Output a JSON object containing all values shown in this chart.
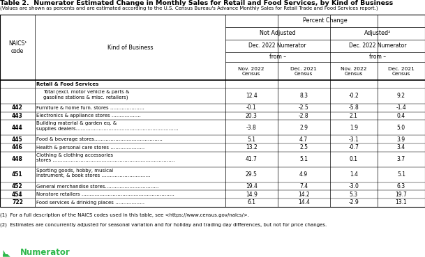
{
  "title": "Table 2.  Numerator Estimated Change in Monthly Sales for Retail and Food Services, by Kind of Business",
  "subtitle": "(Values are shown as percents and are estimated according to the U.S. Census Bureau's Advance Monthly Sales for Retail Trade and Food Services report.)",
  "header_percent_change": "Percent Change",
  "header_not_adjusted": "Not Adjusted",
  "header_adjusted": "Adjusted²",
  "header_dec2022_not_adj": "Dec. 2022 Numerator",
  "header_dec2022_adj": "Dec. 2022 Numerator",
  "header_from": "from –",
  "col_naics": "NAICS¹\ncode",
  "col_kind": "Kind of Business",
  "col_nov2022": "Nov. 2022\nCensus",
  "col_dec2021": "Dec. 2021\nCensus",
  "col_nov2022_adj": "Nov. 2022\nCensus",
  "col_dec2021_adj": "Dec. 2021\nCensus",
  "rows": [
    {
      "naics": "",
      "kind": "Retail & Food Services",
      "nov": "",
      "dec": "",
      "nov_adj": "",
      "dec_adj": "",
      "bold_kind": true,
      "indent": 0,
      "multiline": false
    },
    {
      "naics": "",
      "kind": "Total (excl. motor vehicle & parts &\ngasoline stations & misc. retailers)",
      "nov": "12.4",
      "dec": "8.3",
      "nov_adj": "-0.2",
      "dec_adj": "9.2",
      "bold_kind": false,
      "indent": 1,
      "multiline": true
    },
    {
      "naics": "442",
      "kind": "Furniture & home furn. stores …………………",
      "nov": "-0.1",
      "dec": "-2.5",
      "nov_adj": "-5.8",
      "dec_adj": "-1.4",
      "bold_kind": false,
      "indent": 0,
      "multiline": false
    },
    {
      "naics": "443",
      "kind": "Electronics & appliance stores ………………",
      "nov": "20.3",
      "dec": "-2.8",
      "nov_adj": "2.1",
      "dec_adj": "0.4",
      "bold_kind": false,
      "indent": 0,
      "multiline": false
    },
    {
      "naics": "444",
      "kind": "Building material & garden eq. &\nsupplies dealers………………………………………………………",
      "nov": "-3.8",
      "dec": "2.9",
      "nov_adj": "1.9",
      "dec_adj": "5.0",
      "bold_kind": false,
      "indent": 0,
      "multiline": true
    },
    {
      "naics": "445",
      "kind": "Food & beverage stores……………………………………",
      "nov": "5.1",
      "dec": "4.7",
      "nov_adj": "-3.1",
      "dec_adj": "3.9",
      "bold_kind": false,
      "indent": 0,
      "multiline": false
    },
    {
      "naics": "446",
      "kind": "Health & personal care stores …………………",
      "nov": "13.2",
      "dec": "2.5",
      "nov_adj": "-0.7",
      "dec_adj": "3.4",
      "bold_kind": false,
      "indent": 0,
      "multiline": false
    },
    {
      "naics": "448",
      "kind": "Clothing & clothing accessories\nstores …………………………………………………………………",
      "nov": "41.7",
      "dec": "5.1",
      "nov_adj": "0.1",
      "dec_adj": "3.7",
      "bold_kind": false,
      "indent": 0,
      "multiline": true
    },
    {
      "naics": "451",
      "kind": "Sporting goods, hobby, musical\ninstrument, & book stores …………………………",
      "nov": "29.5",
      "dec": "4.9",
      "nov_adj": "1.4",
      "dec_adj": "5.1",
      "bold_kind": false,
      "indent": 0,
      "multiline": true
    },
    {
      "naics": "452",
      "kind": "General merchandise stores……………………………",
      "nov": "19.4",
      "dec": "7.4",
      "nov_adj": "-3.0",
      "dec_adj": "6.3",
      "bold_kind": false,
      "indent": 0,
      "multiline": false
    },
    {
      "naics": "454",
      "kind": "Nonstore retailers …………………………………………………",
      "nov": "14.9",
      "dec": "14.2",
      "nov_adj": "5.3",
      "dec_adj": "19.7",
      "bold_kind": false,
      "indent": 0,
      "multiline": false
    },
    {
      "naics": "722",
      "kind": "Food services & drinking places ………………",
      "nov": "6.1",
      "dec": "14.4",
      "nov_adj": "-2.9",
      "dec_adj": "13.1",
      "bold_kind": false,
      "indent": 0,
      "multiline": false
    }
  ],
  "footnote1": "(1)  For a full description of the NAICS codes used in this table, see <https://www.census.gov/naics/>.",
  "footnote2": "(2)  Estimates are concurrently adjusted for seasonal variation and for holiday and trading day differences, but not for price changes.",
  "logo_text": "Numerator",
  "bg_color": "#ffffff",
  "text_color": "#000000",
  "logo_color": "#2db84b"
}
